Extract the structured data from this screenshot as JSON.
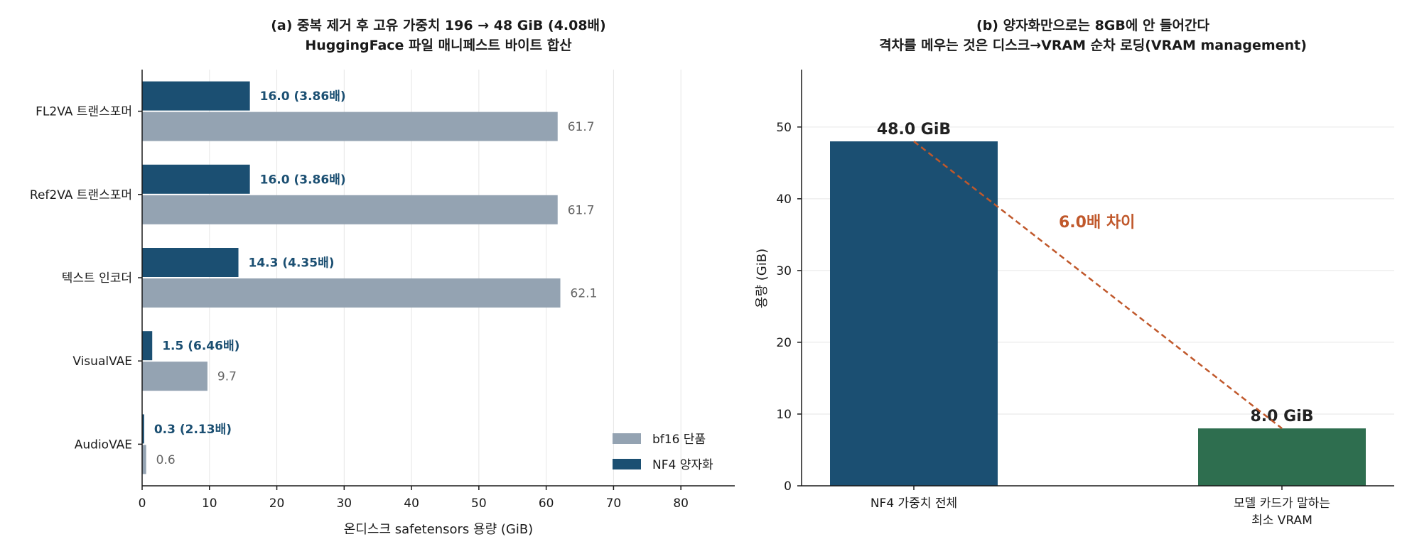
{
  "chart_data": [
    {
      "type": "bar",
      "orientation": "horizontal",
      "title": "(a) 중복 제거 후 고유 가중치 196 → 48 GiB (4.08배)",
      "subtitle": "HuggingFace 파일 매니페스트 바이트 합산",
      "xlabel": "온디스크 safetensors 용량 (GiB)",
      "xlim": [
        0,
        88
      ],
      "xticks": [
        "0",
        "10",
        "20",
        "30",
        "40",
        "50",
        "60",
        "70",
        "80"
      ],
      "grid": "vertical",
      "categories": [
        "FL2VA 트랜스포머",
        "Ref2VA 트랜스포머",
        "텍스트 인코더",
        "VisualVAE",
        "AudioVAE"
      ],
      "series": [
        {
          "name": "NF4 양자화",
          "color": "#1b4f72",
          "values": [
            16.0,
            16.0,
            14.3,
            1.5,
            0.3
          ],
          "labels": [
            "16.0  (3.86배)",
            "16.0  (3.86배)",
            "14.3  (4.35배)",
            "1.5  (6.46배)",
            "0.3  (2.13배)"
          ]
        },
        {
          "name": "bf16 단품",
          "color": "#94a3b2",
          "values": [
            61.7,
            61.7,
            62.1,
            9.7,
            0.6
          ],
          "labels": [
            "61.7",
            "61.7",
            "62.1",
            "9.7",
            "0.6"
          ]
        }
      ],
      "legend": {
        "placement": "bottom-right",
        "items": [
          "bf16 단품",
          "NF4 양자화"
        ]
      }
    },
    {
      "type": "bar",
      "title": "(b) 양자화만으로는 8GB에 안 들어간다",
      "subtitle": "격차를 메우는 것은 디스크→VRAM 순차 로딩(VRAM management)",
      "ylabel": "용량 (GiB)",
      "ylim": [
        0,
        58
      ],
      "yticks": [
        "0",
        "10",
        "20",
        "30",
        "40",
        "50"
      ],
      "grid": "horizontal",
      "categories": [
        "NF4 가중치 전체",
        "모델 카드가 말하는\n최소 VRAM"
      ],
      "values": [
        48.0,
        8.0
      ],
      "colors": [
        "#1b4f72",
        "#2e6e4f"
      ],
      "value_labels": [
        "48.0 GiB",
        "8.0 GiB"
      ],
      "annotation": {
        "text": "6.0배 차이",
        "color": "#c0582b"
      }
    }
  ]
}
